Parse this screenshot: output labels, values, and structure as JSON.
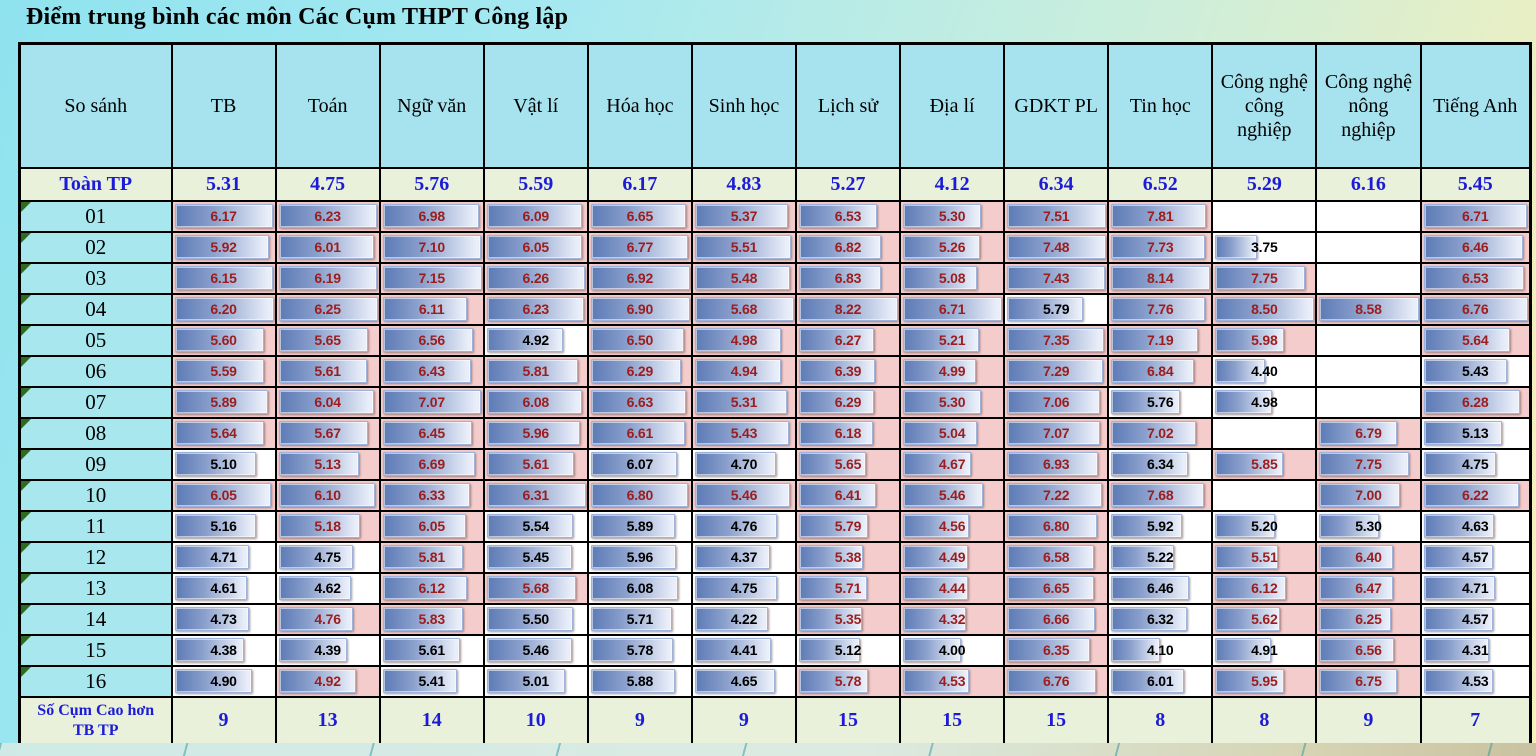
{
  "title": "Điểm trung bình các môn Các Cụm THPT Công lập",
  "table": {
    "columns": [
      "So sánh",
      "TB",
      "Toán",
      "Ngữ văn",
      "Vật lí",
      "Hóa học",
      "Sinh học",
      "Lịch sử",
      "Địa lí",
      "GDKT PL",
      "Tin học",
      "Công nghệ công nghiệp",
      "Công nghệ nông nghiệp",
      "Tiếng Anh"
    ],
    "city_row": {
      "label": "Toàn TP",
      "values": [
        "5.31",
        "4.75",
        "5.76",
        "5.59",
        "6.17",
        "4.83",
        "5.27",
        "4.12",
        "6.34",
        "6.52",
        "5.29",
        "6.16",
        "5.45"
      ]
    },
    "rows": [
      {
        "label": "01",
        "values": [
          "6.17",
          "6.23",
          "6.98",
          "6.09",
          "6.65",
          "5.37",
          "6.53",
          "5.30",
          "7.51",
          "7.81",
          null,
          null,
          "6.71"
        ]
      },
      {
        "label": "02",
        "values": [
          "5.92",
          "6.01",
          "7.10",
          "6.05",
          "6.77",
          "5.51",
          "6.82",
          "5.26",
          "7.48",
          "7.73",
          "3.75",
          null,
          "6.46"
        ]
      },
      {
        "label": "03",
        "values": [
          "6.15",
          "6.19",
          "7.15",
          "6.26",
          "6.92",
          "5.48",
          "6.83",
          "5.08",
          "7.43",
          "8.14",
          "7.75",
          null,
          "6.53"
        ]
      },
      {
        "label": "04",
        "values": [
          "6.20",
          "6.25",
          "6.11",
          "6.23",
          "6.90",
          "5.68",
          "8.22",
          "6.71",
          "5.79",
          "7.76",
          "8.50",
          "8.58",
          "6.76"
        ]
      },
      {
        "label": "05",
        "values": [
          "5.60",
          "5.65",
          "6.56",
          "4.92",
          "6.50",
          "4.98",
          "6.27",
          "5.21",
          "7.35",
          "7.19",
          "5.98",
          null,
          "5.64"
        ]
      },
      {
        "label": "06",
        "values": [
          "5.59",
          "5.61",
          "6.43",
          "5.81",
          "6.29",
          "4.94",
          "6.39",
          "4.99",
          "7.29",
          "6.84",
          "4.40",
          null,
          "5.43"
        ]
      },
      {
        "label": "07",
        "values": [
          "5.89",
          "6.04",
          "7.07",
          "6.08",
          "6.63",
          "5.31",
          "6.29",
          "5.30",
          "7.06",
          "5.76",
          "4.98",
          null,
          "6.28"
        ]
      },
      {
        "label": "08",
        "values": [
          "5.64",
          "5.67",
          "6.45",
          "5.96",
          "6.61",
          "5.43",
          "6.18",
          "5.04",
          "7.07",
          "7.02",
          null,
          "6.79",
          "5.13"
        ]
      },
      {
        "label": "09",
        "values": [
          "5.10",
          "5.13",
          "6.69",
          "5.61",
          "6.07",
          "4.70",
          "5.65",
          "4.67",
          "6.93",
          "6.34",
          "5.85",
          "7.75",
          "4.75"
        ]
      },
      {
        "label": "10",
        "values": [
          "6.05",
          "6.10",
          "6.33",
          "6.31",
          "6.80",
          "5.46",
          "6.41",
          "5.46",
          "7.22",
          "7.68",
          null,
          "7.00",
          "6.22"
        ]
      },
      {
        "label": "11",
        "values": [
          "5.16",
          "5.18",
          "6.05",
          "5.54",
          "5.89",
          "4.76",
          "5.79",
          "4.56",
          "6.80",
          "5.92",
          "5.20",
          "5.30",
          "4.63"
        ]
      },
      {
        "label": "12",
        "values": [
          "4.71",
          "4.75",
          "5.81",
          "5.45",
          "5.96",
          "4.37",
          "5.38",
          "4.49",
          "6.58",
          "5.22",
          "5.51",
          "6.40",
          "4.57"
        ]
      },
      {
        "label": "13",
        "values": [
          "4.61",
          "4.62",
          "6.12",
          "5.68",
          "6.08",
          "4.75",
          "5.71",
          "4.44",
          "6.65",
          "6.46",
          "6.12",
          "6.47",
          "4.71"
        ]
      },
      {
        "label": "14",
        "values": [
          "4.73",
          "4.76",
          "5.83",
          "5.50",
          "5.71",
          "4.22",
          "5.35",
          "4.32",
          "6.66",
          "6.32",
          "5.62",
          "6.25",
          "4.57"
        ]
      },
      {
        "label": "15",
        "values": [
          "4.38",
          "4.39",
          "5.61",
          "5.46",
          "5.78",
          "4.41",
          "5.12",
          "4.00",
          "6.35",
          "4.10",
          "4.91",
          "6.56",
          "4.31"
        ]
      },
      {
        "label": "16",
        "values": [
          "4.90",
          "4.92",
          "5.41",
          "5.01",
          "5.88",
          "4.65",
          "5.78",
          "4.53",
          "6.76",
          "6.01",
          "5.95",
          "6.75",
          "4.53"
        ]
      }
    ],
    "summary_row": {
      "label": "Số Cụm Cao hơn TB TP",
      "values": [
        "9",
        "13",
        "14",
        "10",
        "9",
        "9",
        "15",
        "15",
        "15",
        "8",
        "8",
        "9",
        "7"
      ]
    },
    "legend": {
      "above_average_style": "pink background, dark red value",
      "below_average_style": "white background, black value"
    }
  },
  "colors": {
    "header_bg": "#a7e3ef",
    "label_bg": "#a9e7ee",
    "green_row_bg": "#e9f1db",
    "blue_text": "#1c1cd6",
    "above_bg": "#f5cccc",
    "above_text": "#9b1d1d",
    "below_text": "#000000",
    "bar_dark": "#5d7bb6",
    "bar_light": "#e9eef9",
    "bar_border": "#9fb2da",
    "triangle_green": "#2e6b1f"
  }
}
